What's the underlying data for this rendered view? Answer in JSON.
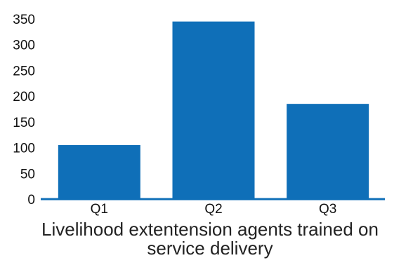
{
  "chart_data": {
    "type": "bar",
    "categories": [
      "Q1",
      "Q2",
      "Q3"
    ],
    "values": [
      105,
      345,
      185
    ],
    "ylim": [
      0,
      350
    ],
    "yticks": [
      0,
      50,
      100,
      150,
      200,
      250,
      300,
      350
    ],
    "grid": false,
    "legend": "none",
    "bar_color": "#0f6fb8",
    "axis_color": "#0f6fb8"
  },
  "caption": {
    "line1": "Livelihood extentension agents trained on",
    "line2": "service delivery"
  }
}
